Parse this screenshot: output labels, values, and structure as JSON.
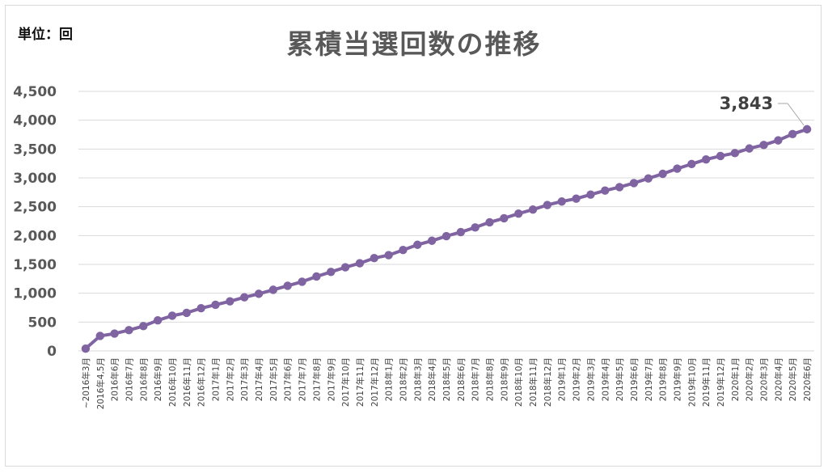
{
  "unit_label": "単位：回",
  "colors": {
    "series": "#8064a2",
    "grid": "#d9d9d9",
    "text": "#595959"
  },
  "chart_data": {
    "type": "line",
    "title": "累積当選回数の推移",
    "unit": "回",
    "xlabel": "",
    "ylabel": "",
    "ylim": [
      0,
      4500
    ],
    "yticks": [
      0,
      500,
      1000,
      1500,
      2000,
      2500,
      3000,
      3500,
      4000,
      4500
    ],
    "ytick_labels": [
      "0",
      "500",
      "1,000",
      "1,500",
      "2,000",
      "2,500",
      "3,000",
      "3,500",
      "4,000",
      "4,500"
    ],
    "grid": true,
    "markers": true,
    "categories": [
      "~2016年3月",
      "2016年4,5月",
      "2016年6月",
      "2016年7月",
      "2016年8月",
      "2016年9月",
      "2016年10月",
      "2016年11月",
      "2016年12月",
      "2017年1月",
      "2017年2月",
      "2017年3月",
      "2017年4月",
      "2017年5月",
      "2017年6月",
      "2017年7月",
      "2017年8月",
      "2017年9月",
      "2017年10月",
      "2017年11月",
      "2017年12月",
      "2018年1月",
      "2018年2月",
      "2018年3月",
      "2018年4月",
      "2018年5月",
      "2018年6月",
      "2018年7月",
      "2018年8月",
      "2018年9月",
      "2018年10月",
      "2018年11月",
      "2018年12月",
      "2019年1月",
      "2019年2月",
      "2019年3月",
      "2019年4月",
      "2019年5月",
      "2019年6月",
      "2019年7月",
      "2019年8月",
      "2019年9月",
      "2019年10月",
      "2019年11月",
      "2019年12月",
      "2020年1月",
      "2020年2月",
      "2020年3月",
      "2020年4月",
      "2020年5月",
      "2020年6月"
    ],
    "values": [
      40,
      260,
      300,
      360,
      430,
      530,
      610,
      660,
      740,
      800,
      860,
      930,
      990,
      1060,
      1130,
      1200,
      1290,
      1370,
      1450,
      1520,
      1610,
      1660,
      1750,
      1840,
      1910,
      1990,
      2060,
      2140,
      2230,
      2300,
      2380,
      2450,
      2530,
      2590,
      2640,
      2710,
      2780,
      2840,
      2910,
      2990,
      3070,
      3160,
      3240,
      3320,
      3380,
      3430,
      3510,
      3570,
      3650,
      3760,
      3843
    ],
    "data_labels": [
      {
        "index": 50,
        "text": "3,843"
      }
    ]
  }
}
